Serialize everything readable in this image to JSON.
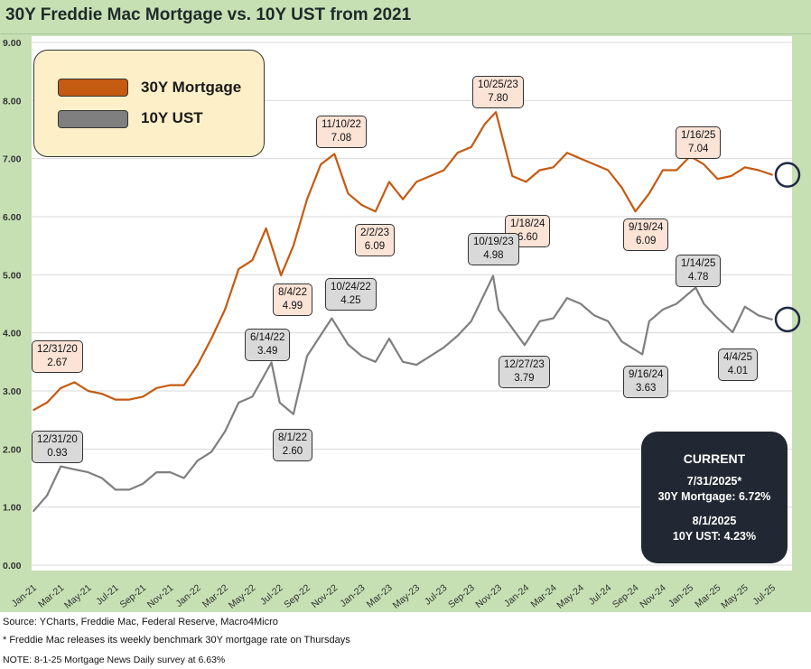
{
  "title": "30Y Freddie Mac Mortgage vs. 10Y UST from 2021",
  "chart_data": {
    "type": "line",
    "title": "30Y Freddie Mac Mortgage vs. 10Y UST from 2021",
    "ylim": [
      0,
      9
    ],
    "yticks": [
      "0.00",
      "1.00",
      "2.00",
      "3.00",
      "4.00",
      "5.00",
      "6.00",
      "7.00",
      "8.00",
      "9.00"
    ],
    "xticks": [
      "Jan-21",
      "Mar-21",
      "May-21",
      "Jul-21",
      "Sep-21",
      "Nov-21",
      "Jan-22",
      "Mar-22",
      "May-22",
      "Jul-22",
      "Sep-22",
      "Nov-22",
      "Jan-23",
      "Mar-23",
      "May-23",
      "Jul-23",
      "Sep-23",
      "Nov-23",
      "Jan-24",
      "Mar-24",
      "May-24",
      "Jul-24",
      "Sep-24",
      "Nov-24",
      "Jan-25",
      "Mar-25",
      "May-25",
      "Jul-25"
    ],
    "x_unit": "months since Jan-21",
    "legend": {
      "placement": "top-left",
      "entries": [
        "30Y Mortgage",
        "10Y UST"
      ]
    },
    "colors": {
      "mortgage": "#c55a11",
      "ust": "#7f7f7f"
    },
    "series": [
      {
        "name": "30Y Mortgage",
        "x": [
          0,
          1,
          2,
          3,
          4,
          5,
          6,
          7,
          8,
          9,
          10,
          11,
          12,
          13,
          14,
          15,
          16,
          17,
          18.1,
          19,
          20,
          21,
          22,
          23,
          24,
          25,
          26,
          27,
          28,
          29,
          30,
          31,
          32,
          33,
          33.8,
          35,
          36,
          37,
          38,
          39,
          40,
          41,
          42,
          43,
          44,
          45,
          46,
          47,
          48,
          49,
          50,
          51,
          52,
          53,
          54
        ],
        "values": [
          2.67,
          2.8,
          3.05,
          3.15,
          3.0,
          2.95,
          2.85,
          2.85,
          2.9,
          3.05,
          3.1,
          3.1,
          3.45,
          3.9,
          4.4,
          5.1,
          5.25,
          5.8,
          4.99,
          5.5,
          6.3,
          6.9,
          7.08,
          6.4,
          6.2,
          6.09,
          6.6,
          6.3,
          6.6,
          6.7,
          6.8,
          7.1,
          7.2,
          7.6,
          7.8,
          6.7,
          6.6,
          6.8,
          6.85,
          7.1,
          7.0,
          6.9,
          6.8,
          6.5,
          6.09,
          6.4,
          6.8,
          6.8,
          7.04,
          6.9,
          6.65,
          6.7,
          6.85,
          6.8,
          6.72
        ]
      },
      {
        "name": "10Y UST",
        "x": [
          0,
          1,
          2,
          3,
          4,
          5,
          6,
          7,
          8,
          9,
          10,
          11,
          12,
          13,
          14,
          15,
          16,
          17.4,
          18,
          19,
          20,
          21.8,
          23,
          24,
          25,
          26,
          27,
          28,
          29,
          30,
          31,
          32,
          33.6,
          34,
          35.9,
          37,
          38,
          39,
          40,
          41,
          42,
          43,
          44.5,
          45,
          46,
          47,
          48.4,
          49,
          50,
          51.1,
          52,
          53,
          54
        ],
        "values": [
          0.93,
          1.2,
          1.7,
          1.65,
          1.6,
          1.5,
          1.3,
          1.3,
          1.4,
          1.6,
          1.6,
          1.5,
          1.8,
          1.95,
          2.3,
          2.8,
          2.9,
          3.49,
          2.8,
          2.6,
          3.6,
          4.25,
          3.8,
          3.6,
          3.5,
          3.9,
          3.5,
          3.45,
          3.6,
          3.75,
          3.95,
          4.2,
          4.98,
          4.4,
          3.79,
          4.2,
          4.25,
          4.6,
          4.5,
          4.3,
          4.2,
          3.85,
          3.63,
          4.2,
          4.4,
          4.5,
          4.78,
          4.5,
          4.25,
          4.01,
          4.45,
          4.3,
          4.23
        ]
      }
    ],
    "annotations": [
      {
        "series": "30Y Mortgage",
        "date": "12/31/20",
        "value": "2.67"
      },
      {
        "series": "30Y Mortgage",
        "date": "8/4/22",
        "value": "4.99"
      },
      {
        "series": "30Y Mortgage",
        "date": "11/10/22",
        "value": "7.08"
      },
      {
        "series": "30Y Mortgage",
        "date": "2/2/23",
        "value": "6.09"
      },
      {
        "series": "30Y Mortgage",
        "date": "10/25/23",
        "value": "7.80"
      },
      {
        "series": "30Y Mortgage",
        "date": "1/18/24",
        "value": "6.60"
      },
      {
        "series": "30Y Mortgage",
        "date": "9/19/24",
        "value": "6.09"
      },
      {
        "series": "30Y Mortgage",
        "date": "1/16/25",
        "value": "7.04"
      },
      {
        "series": "10Y UST",
        "date": "12/31/20",
        "value": "0.93"
      },
      {
        "series": "10Y UST",
        "date": "6/14/22",
        "value": "3.49"
      },
      {
        "series": "10Y UST",
        "date": "8/1/22",
        "value": "2.60"
      },
      {
        "series": "10Y UST",
        "date": "10/24/22",
        "value": "4.25"
      },
      {
        "series": "10Y UST",
        "date": "10/19/23",
        "value": "4.98"
      },
      {
        "series": "10Y UST",
        "date": "12/27/23",
        "value": "3.79"
      },
      {
        "series": "10Y UST",
        "date": "9/16/24",
        "value": "3.63"
      },
      {
        "series": "10Y UST",
        "date": "1/14/25",
        "value": "4.78"
      },
      {
        "series": "10Y UST",
        "date": "4/4/25",
        "value": "4.01"
      }
    ]
  },
  "current": {
    "heading": "CURRENT",
    "mortgage_date": "7/31/2025*",
    "mortgage_text": "30Y Mortgage: 6.72%",
    "ust_date": "8/1/2025",
    "ust_text": "10Y UST: 4.23%"
  },
  "footnotes": [
    "Source: YCharts, Freddie Mac, Federal Reserve, Macro4Micro",
    "* Freddie Mac releases its weekly benchmark 30Y mortgage rate on Thursdays",
    "NOTE: 8-1-25 Mortgage News Daily survey at 6.63%"
  ]
}
